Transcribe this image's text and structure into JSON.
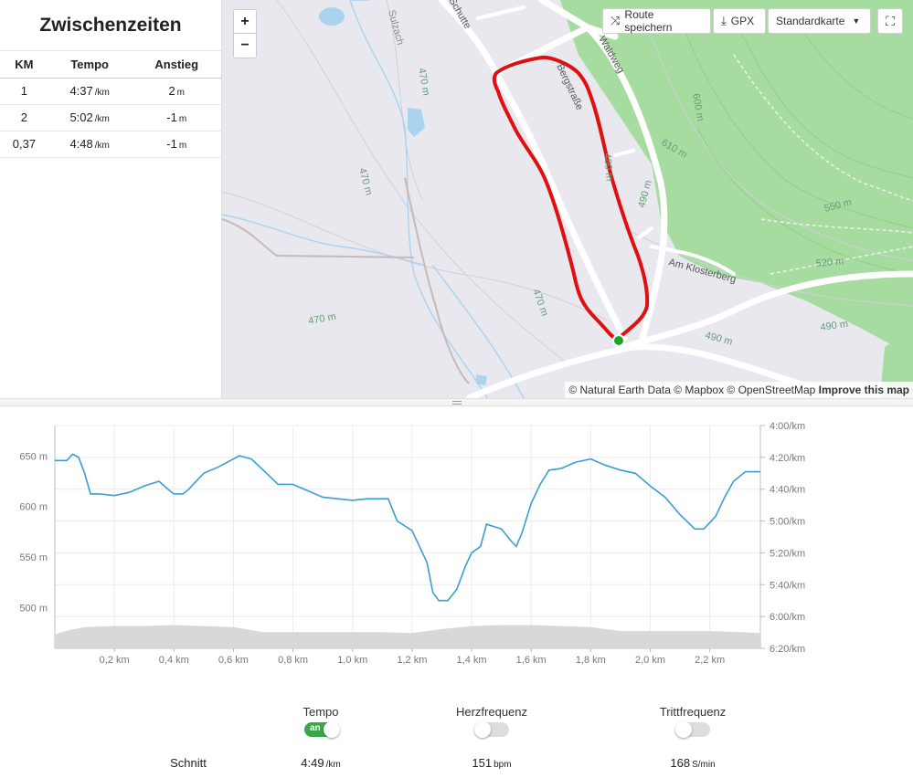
{
  "splits": {
    "title": "Zwischenzeiten",
    "headers": [
      "KM",
      "Tempo",
      "Anstieg"
    ],
    "rows": [
      {
        "km": "1",
        "tempo": "4:37",
        "tempo_unit": "/km",
        "anstieg": "2",
        "anstieg_unit": "m"
      },
      {
        "km": "2",
        "tempo": "5:02",
        "tempo_unit": "/km",
        "anstieg": "-1",
        "anstieg_unit": "m"
      },
      {
        "km": "0,37",
        "tempo": "4:48",
        "tempo_unit": "/km",
        "anstieg": "-1",
        "anstieg_unit": "m"
      }
    ]
  },
  "map": {
    "zoom_in": "+",
    "zoom_out": "−",
    "save_route": "Route speichern",
    "gpx": "GPX",
    "map_style": "Standardkarte",
    "attribution": "© Natural Earth Data © Mapbox © OpenStreetMap",
    "improve": "Improve this map",
    "labels": {
      "sulzach": "Sulzach",
      "waldweg": "Waldweg",
      "am_klosterberg": "Am Klosterberg",
      "bergstrasse": "Bergstraße",
      "strasse_top": "Schutte",
      "h470a": "470 m",
      "h470b": "470 m",
      "h470c": "470 m",
      "h470d": "470 m",
      "h480": "480 m",
      "h490a": "490 m",
      "h490b": "490 m",
      "h490c": "490 m",
      "h520": "520 m",
      "h550": "550 m",
      "h610": "610 m",
      "h600": "600 m"
    },
    "colors": {
      "route": "#e01010",
      "forest": "#a6dca0",
      "water": "#a9d3ee",
      "start": "#1aa52a"
    }
  },
  "chart_data": {
    "type": "line",
    "x_ticks": [
      "0,2 km",
      "0,4 km",
      "0,6 km",
      "0,8 km",
      "1,0 km",
      "1,2 km",
      "1,4 km",
      "1,6 km",
      "1,8 km",
      "2,0 km",
      "2,2 km"
    ],
    "x_tick_values": [
      0.2,
      0.4,
      0.6,
      0.8,
      1.0,
      1.2,
      1.4,
      1.6,
      1.8,
      2.0,
      2.2
    ],
    "xlim": [
      0,
      2.37
    ],
    "left_axis": {
      "ticks": [
        "650 m",
        "600 m",
        "550 m",
        "500 m"
      ],
      "values": [
        650,
        600,
        550,
        500
      ],
      "range": [
        460,
        680
      ]
    },
    "right_axis": {
      "ticks": [
        "4:00/km",
        "4:20/km",
        "4:40/km",
        "5:00/km",
        "5:20/km",
        "5:40/km",
        "6:00/km",
        "6:20/km"
      ],
      "values_sec": [
        240,
        260,
        280,
        300,
        320,
        340,
        360,
        380
      ],
      "range_sec": [
        240,
        380
      ]
    },
    "series": [
      {
        "name": "Tempo",
        "color": "#3a9fd0",
        "x": [
          0,
          0.04,
          0.06,
          0.08,
          0.1,
          0.12,
          0.15,
          0.2,
          0.25,
          0.3,
          0.35,
          0.38,
          0.4,
          0.43,
          0.45,
          0.5,
          0.55,
          0.6,
          0.62,
          0.66,
          0.7,
          0.75,
          0.8,
          0.85,
          0.9,
          0.95,
          1.0,
          1.05,
          1.1,
          1.12,
          1.15,
          1.2,
          1.25,
          1.27,
          1.29,
          1.3,
          1.32,
          1.35,
          1.38,
          1.4,
          1.43,
          1.45,
          1.5,
          1.53,
          1.55,
          1.57,
          1.6,
          1.63,
          1.66,
          1.7,
          1.75,
          1.8,
          1.85,
          1.9,
          1.95,
          2.0,
          2.05,
          2.1,
          2.15,
          2.18,
          2.22,
          2.25,
          2.28,
          2.32,
          2.37
        ],
        "values": [
          262,
          262,
          258,
          260,
          270,
          283,
          283,
          284,
          282,
          278,
          275,
          280,
          283,
          283,
          280,
          270,
          266,
          261,
          259,
          261,
          268,
          277,
          277,
          281,
          285,
          286,
          287,
          286,
          286,
          286,
          300,
          306,
          326,
          345,
          350,
          350,
          350,
          343,
          328,
          320,
          316,
          302,
          305,
          312,
          316,
          307,
          289,
          277,
          268,
          267,
          263,
          261,
          265,
          268,
          270,
          278,
          285,
          296,
          305,
          305,
          297,
          285,
          275,
          269,
          269
        ]
      },
      {
        "name": "Höhe",
        "color": "#d8d8d8",
        "x": [
          0,
          0.05,
          0.1,
          0.2,
          0.3,
          0.4,
          0.5,
          0.6,
          0.7,
          0.8,
          0.9,
          1.0,
          1.1,
          1.2,
          1.3,
          1.4,
          1.5,
          1.6,
          1.7,
          1.8,
          1.9,
          2.0,
          2.1,
          2.2,
          2.3,
          2.37
        ],
        "values": [
          474,
          478,
          481,
          482,
          482,
          483,
          482,
          481,
          476,
          476,
          476,
          476,
          476,
          475,
          479,
          482,
          483,
          483,
          482,
          481,
          477,
          477,
          477,
          477,
          476,
          475
        ]
      }
    ]
  },
  "stats": {
    "schnitt_label": "Schnitt",
    "tempo": {
      "title": "Tempo",
      "toggle": "an",
      "value": "4:49",
      "unit": "/km"
    },
    "herzfrequenz": {
      "title": "Herzfrequenz",
      "value": "151",
      "unit": "bpm"
    },
    "trittfrequenz": {
      "title": "Trittfrequenz",
      "value": "168",
      "unit": "S/min"
    }
  }
}
